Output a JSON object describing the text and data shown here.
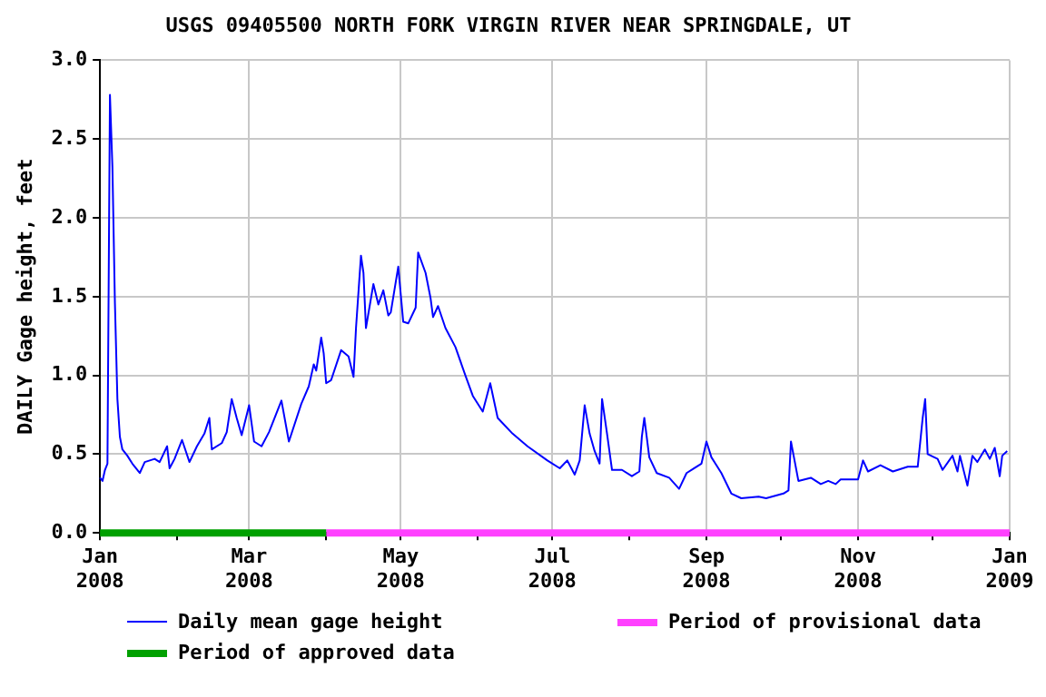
{
  "chart_data": {
    "type": "line",
    "title": "USGS 09405500 NORTH FORK VIRGIN RIVER NEAR SPRINGDALE, UT",
    "ylabel": "DAILY Gage height, feet",
    "xlim": [
      "2008-01-01",
      "2009-01-01"
    ],
    "ylim": [
      0,
      3.0
    ],
    "xticks": [
      {
        "value": "2008-01-01",
        "label": "Jan 2008"
      },
      {
        "value": "2008-02-01",
        "label": null
      },
      {
        "value": "2008-03-01",
        "label": "Mar 2008"
      },
      {
        "value": "2008-04-01",
        "label": null
      },
      {
        "value": "2008-05-01",
        "label": "May 2008"
      },
      {
        "value": "2008-06-01",
        "label": null
      },
      {
        "value": "2008-07-01",
        "label": "Jul 2008"
      },
      {
        "value": "2008-08-01",
        "label": null
      },
      {
        "value": "2008-09-01",
        "label": "Sep 2008"
      },
      {
        "value": "2008-10-01",
        "label": null
      },
      {
        "value": "2008-11-01",
        "label": "Nov 2008"
      },
      {
        "value": "2008-12-01",
        "label": null
      },
      {
        "value": "2009-01-01",
        "label": "Jan 2009"
      }
    ],
    "yticks": [
      {
        "value": 0,
        "label": "0.0"
      },
      {
        "value": 0.5,
        "label": "0.5"
      },
      {
        "value": 1.0,
        "label": "1.0"
      },
      {
        "value": 1.5,
        "label": "1.5"
      },
      {
        "value": 2.0,
        "label": "2.0"
      },
      {
        "value": 2.5,
        "label": "2.5"
      },
      {
        "value": 3.0,
        "label": "3.0"
      }
    ],
    "grid": true,
    "legend": "bottom",
    "marker": "none",
    "line_style": "solid",
    "x": [
      "2008-01-01",
      "2008-01-02",
      "2008-01-03",
      "2008-01-04",
      "2008-01-05",
      "2008-01-06",
      "2008-01-07",
      "2008-01-08",
      "2008-01-09",
      "2008-01-10",
      "2008-01-12",
      "2008-01-14",
      "2008-01-17",
      "2008-01-19",
      "2008-01-23",
      "2008-01-25",
      "2008-01-28",
      "2008-01-29",
      "2008-01-31",
      "2008-02-03",
      "2008-02-06",
      "2008-02-09",
      "2008-02-12",
      "2008-02-14",
      "2008-02-15",
      "2008-02-19",
      "2008-02-21",
      "2008-02-23",
      "2008-02-25",
      "2008-02-27",
      "2008-03-01",
      "2008-03-03",
      "2008-03-06",
      "2008-03-09",
      "2008-03-14",
      "2008-03-17",
      "2008-03-22",
      "2008-03-25",
      "2008-03-27",
      "2008-03-28",
      "2008-03-30",
      "2008-03-31",
      "2008-04-01",
      "2008-04-03",
      "2008-04-07",
      "2008-04-10",
      "2008-04-12",
      "2008-04-13",
      "2008-04-15",
      "2008-04-16",
      "2008-04-17",
      "2008-04-20",
      "2008-04-22",
      "2008-04-24",
      "2008-04-26",
      "2008-04-27",
      "2008-04-30",
      "2008-05-02",
      "2008-05-04",
      "2008-05-07",
      "2008-05-08",
      "2008-05-11",
      "2008-05-13",
      "2008-05-14",
      "2008-05-16",
      "2008-05-19",
      "2008-05-23",
      "2008-05-27",
      "2008-05-30",
      "2008-06-03",
      "2008-06-06",
      "2008-06-09",
      "2008-06-15",
      "2008-06-21",
      "2008-06-29",
      "2008-07-04",
      "2008-07-07",
      "2008-07-10",
      "2008-07-12",
      "2008-07-14",
      "2008-07-16",
      "2008-07-18",
      "2008-07-20",
      "2008-07-21",
      "2008-07-23",
      "2008-07-25",
      "2008-07-29",
      "2008-08-02",
      "2008-08-05",
      "2008-08-06",
      "2008-08-07",
      "2008-08-09",
      "2008-08-12",
      "2008-08-17",
      "2008-08-21",
      "2008-08-24",
      "2008-08-30",
      "2008-09-01",
      "2008-09-03",
      "2008-09-07",
      "2008-09-11",
      "2008-09-15",
      "2008-09-22",
      "2008-09-25",
      "2008-10-02",
      "2008-10-04",
      "2008-10-05",
      "2008-10-08",
      "2008-10-13",
      "2008-10-17",
      "2008-10-20",
      "2008-10-23",
      "2008-10-25",
      "2008-11-01",
      "2008-11-03",
      "2008-11-05",
      "2008-11-10",
      "2008-11-15",
      "2008-11-21",
      "2008-11-25",
      "2008-11-27",
      "2008-11-28",
      "2008-11-29",
      "2008-12-03",
      "2008-12-05",
      "2008-12-09",
      "2008-12-11",
      "2008-12-12",
      "2008-12-15",
      "2008-12-17",
      "2008-12-19",
      "2008-12-22",
      "2008-12-24",
      "2008-12-26",
      "2008-12-28",
      "2008-12-29",
      "2008-12-31"
    ],
    "series": [
      {
        "name": "Daily mean gage height",
        "color": "#0000ff",
        "values": [
          0.35,
          0.33,
          0.4,
          0.44,
          2.78,
          2.32,
          1.46,
          0.85,
          0.61,
          0.53,
          0.49,
          0.44,
          0.38,
          0.45,
          0.47,
          0.45,
          0.55,
          0.41,
          0.47,
          0.59,
          0.45,
          0.55,
          0.63,
          0.73,
          0.53,
          0.57,
          0.64,
          0.85,
          0.73,
          0.62,
          0.81,
          0.58,
          0.55,
          0.64,
          0.84,
          0.58,
          0.82,
          0.93,
          1.07,
          1.03,
          1.24,
          1.14,
          0.95,
          0.97,
          1.16,
          1.12,
          0.99,
          1.3,
          1.76,
          1.65,
          1.3,
          1.58,
          1.45,
          1.54,
          1.38,
          1.4,
          1.69,
          1.34,
          1.33,
          1.43,
          1.78,
          1.65,
          1.49,
          1.37,
          1.44,
          1.3,
          1.18,
          1.0,
          0.87,
          0.77,
          0.95,
          0.73,
          0.63,
          0.55,
          0.46,
          0.41,
          0.46,
          0.37,
          0.46,
          0.81,
          0.63,
          0.52,
          0.44,
          0.85,
          0.63,
          0.4,
          0.4,
          0.36,
          0.39,
          0.61,
          0.73,
          0.48,
          0.38,
          0.35,
          0.28,
          0.38,
          0.44,
          0.58,
          0.48,
          0.38,
          0.25,
          0.22,
          0.23,
          0.22,
          0.25,
          0.27,
          0.58,
          0.33,
          0.35,
          0.31,
          0.33,
          0.31,
          0.34,
          0.34,
          0.46,
          0.39,
          0.43,
          0.39,
          0.42,
          0.42,
          0.73,
          0.85,
          0.5,
          0.47,
          0.4,
          0.49,
          0.39,
          0.49,
          0.3,
          0.49,
          0.45,
          0.53,
          0.47,
          0.54,
          0.36,
          0.49,
          0.52
        ]
      },
      {
        "name": "Period of approved data",
        "color": "#00a000",
        "x": [
          "2008-01-01",
          "2008-04-01"
        ],
        "values": [
          0,
          0
        ]
      },
      {
        "name": "Period of provisional data",
        "color": "#ff40ff",
        "x": [
          "2008-04-01",
          "2009-01-01"
        ],
        "values": [
          0,
          0
        ]
      }
    ]
  }
}
